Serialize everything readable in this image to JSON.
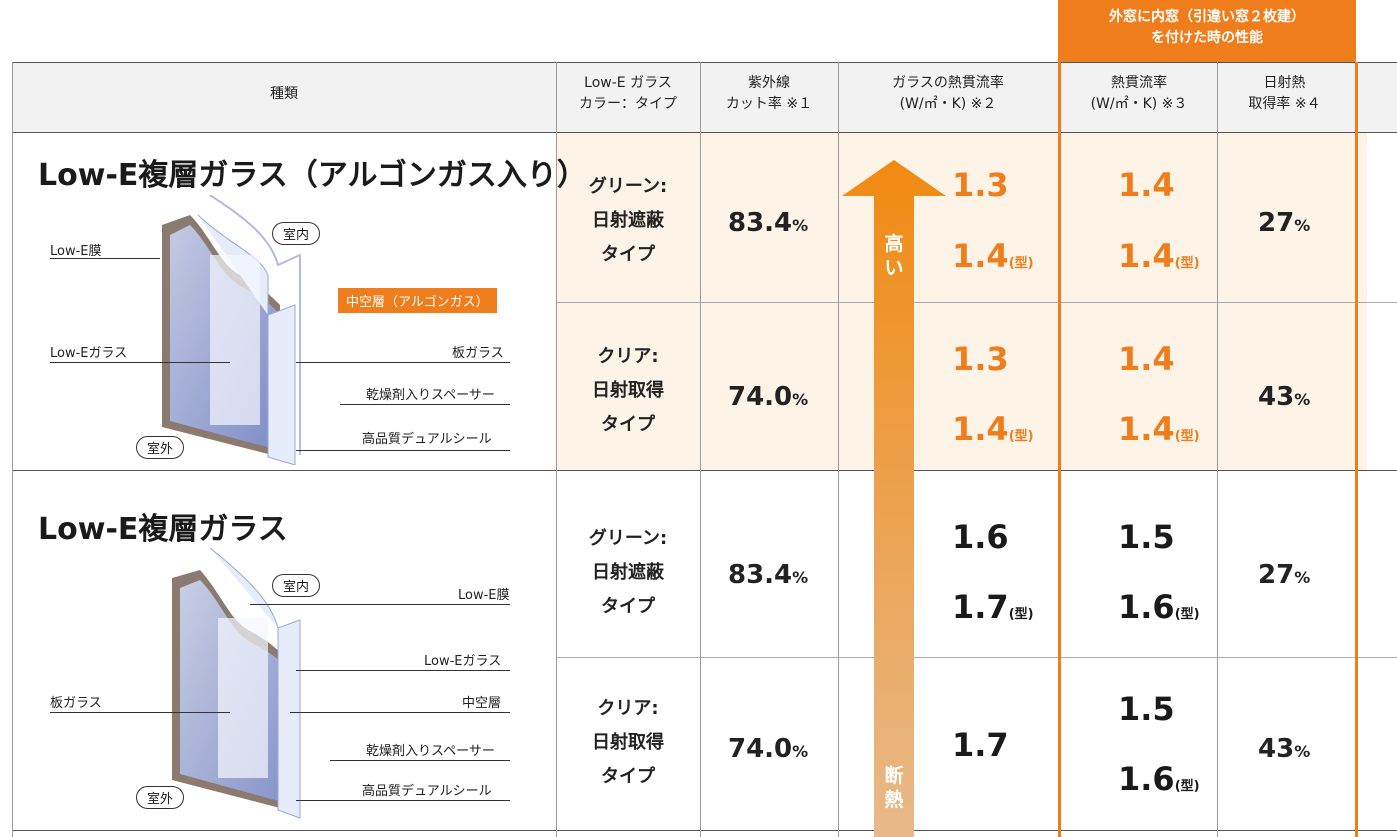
{
  "banner": {
    "line1": "外窓に内窓（引違い窓２枚建）",
    "line2": "を付けた時の性能"
  },
  "headers": {
    "kind": "種類",
    "color_l1": "Low-E ガラス",
    "color_l2": "カラー：タイプ",
    "uv_l1": "紫外線",
    "uv_l2": "カット率 ※１",
    "glass_u_l1": "ガラスの熱貫流率",
    "glass_u_l2": "(W/㎡・K) ※２",
    "win_u_l1": "熱貫流率",
    "win_u_l2": "(W/㎡・K) ※３",
    "solar_l1": "日射熱",
    "solar_l2": "取得率 ※４"
  },
  "arrow": {
    "top_text": "高い",
    "bottom_text": "断熱"
  },
  "sections": [
    {
      "title": "Low-E複層ガラス（アルゴンガス入り）",
      "labels": {
        "lowe_film": "Low-E膜",
        "indoor": "室内",
        "hollow": "中空層（アルゴンガス）",
        "lowe_glass": "Low-Eガラス",
        "plate_glass": "板ガラス",
        "spacer": "乾燥剤入りスペーサー",
        "outdoor": "室外",
        "seal": "高品質デュアルシール"
      },
      "rows": [
        {
          "type_l1": "グリーン:",
          "type_l2": "日射遮蔽",
          "type_l3": "タイプ",
          "uv": "83.4",
          "uv_unit": "%",
          "glass_u": "1.3",
          "glass_u_mold": "1.4",
          "win_u": "1.4",
          "win_u_mold": "1.4",
          "solar": "27",
          "solar_unit": "%"
        },
        {
          "type_l1": "クリア:",
          "type_l2": "日射取得",
          "type_l3": "タイプ",
          "uv": "74.0",
          "uv_unit": "%",
          "glass_u": "1.3",
          "glass_u_mold": "1.4",
          "win_u": "1.4",
          "win_u_mold": "1.4",
          "solar": "43",
          "solar_unit": "%"
        }
      ]
    },
    {
      "title": "Low-E複層ガラス",
      "labels": {
        "indoor": "室内",
        "lowe_film": "Low-E膜",
        "lowe_glass": "Low-Eガラス",
        "plate_glass": "板ガラス",
        "hollow": "中空層",
        "spacer": "乾燥剤入りスペーサー",
        "outdoor": "室外",
        "seal": "高品質デュアルシール"
      },
      "rows": [
        {
          "type_l1": "グリーン:",
          "type_l2": "日射遮蔽",
          "type_l3": "タイプ",
          "uv": "83.4",
          "uv_unit": "%",
          "glass_u": "1.6",
          "glass_u_mold": "1.7",
          "win_u": "1.5",
          "win_u_mold": "1.6",
          "solar": "27",
          "solar_unit": "%"
        },
        {
          "type_l1": "クリア:",
          "type_l2": "日射取得",
          "type_l3": "タイプ",
          "uv": "74.0",
          "uv_unit": "%",
          "glass_u": "1.7",
          "win_u": "1.5",
          "win_u_mold": "1.6",
          "solar": "43",
          "solar_unit": "%"
        }
      ]
    }
  ],
  "mold_suffix": "(型)",
  "colors": {
    "accent": "#ef7d1b",
    "highlight_bg": "#fdf3e7",
    "header_bg": "#f2f2f2"
  }
}
